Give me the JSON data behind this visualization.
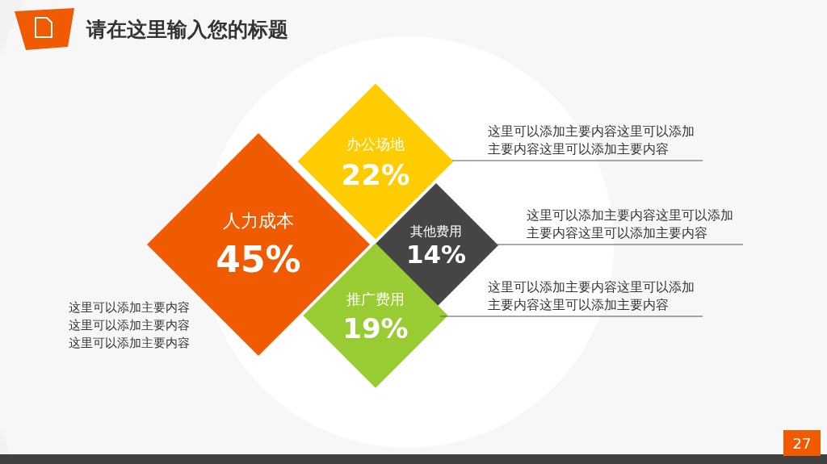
{
  "chart_data": {
    "type": "other",
    "title": "请在这里输入您的标题",
    "categories": [
      "人力成本",
      "办公场地",
      "其他费用",
      "推广费用"
    ],
    "values": [
      45,
      22,
      14,
      19
    ],
    "colors": [
      "#f05a00",
      "#ffcc00",
      "#454545",
      "#99cc33"
    ],
    "value_labels": [
      "45%",
      "22%",
      "14%",
      "19%"
    ],
    "annotations": [
      "这里可以添加主要内容这里可以添加主要内容这里可以添加主要内容",
      "这里可以添加主要内容这里可以添加主要内容这里可以添加主要内容",
      "这里可以添加主要内容这里可以添加主要内容这里可以添加主要内容",
      "这里可以添加主要内容这里可以添加主要内容这里可以添加主要内容",
      "27"
    ]
  }
}
